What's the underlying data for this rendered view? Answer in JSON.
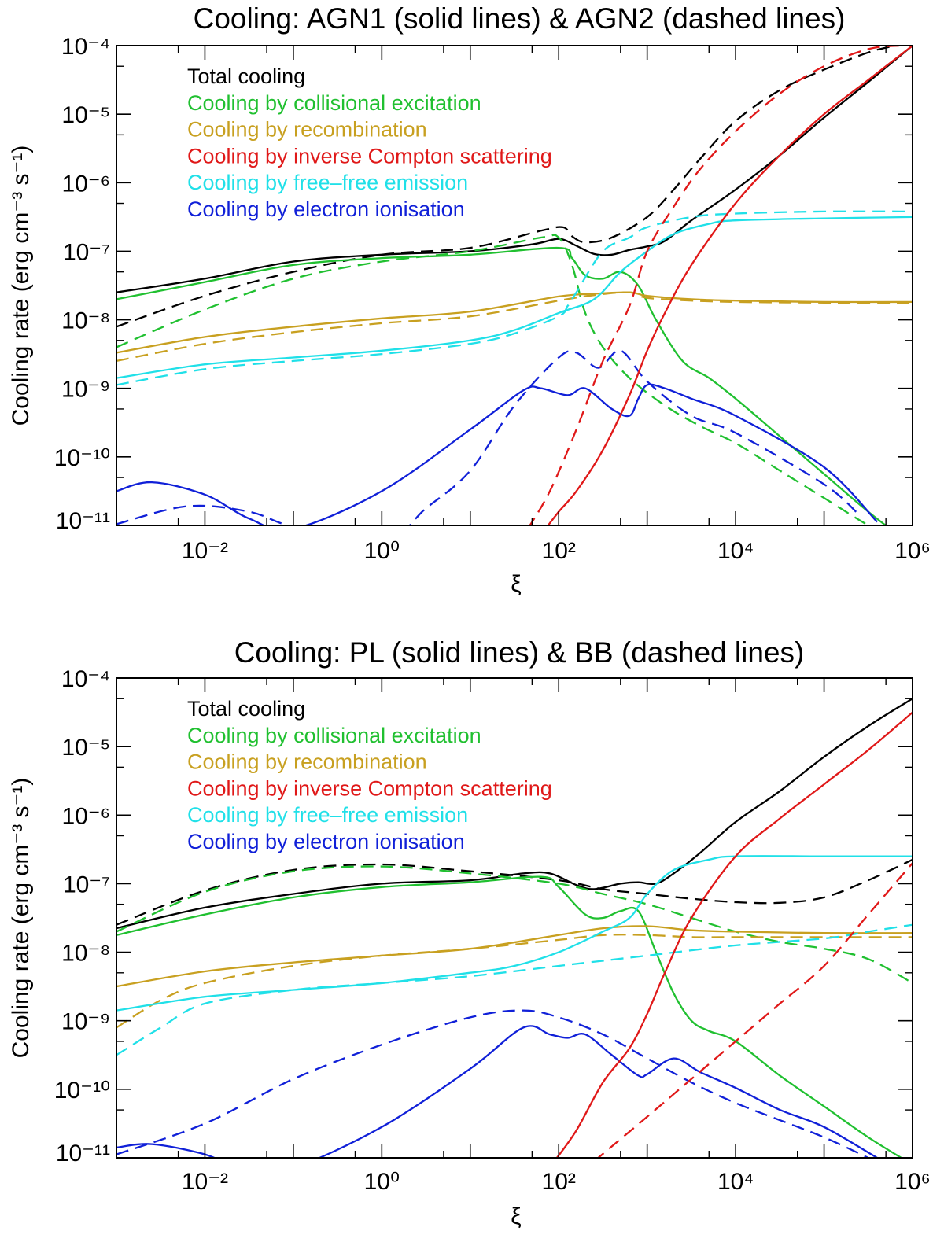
{
  "chart_data": [
    {
      "type": "line",
      "title": "Cooling: AGN1 (solid lines) & AGN2 (dashed lines)",
      "xlabel": "ξ",
      "ylabel": "Cooling rate (erg cm⁻³ s⁻¹)",
      "xscale": "log",
      "yscale": "log",
      "xlim": [
        0.001,
        1000000
      ],
      "ylim": [
        1e-11,
        0.0001
      ],
      "x_ticks": [
        "10⁻²",
        "10⁰",
        "10²",
        "10⁴",
        "10⁶"
      ],
      "y_ticks": [
        "10⁻¹¹",
        "10⁻¹⁰",
        "10⁻⁹",
        "10⁻⁸",
        "10⁻⁷",
        "10⁻⁶",
        "10⁻⁵",
        "10⁻⁴"
      ],
      "legend_position": "top-left",
      "series": [
        {
          "name": "Total cooling",
          "color": "#000000",
          "style": "solid",
          "log_x": [
            -3,
            -2,
            -1,
            0,
            1,
            1.7,
            2,
            2.2,
            2.4,
            2.6,
            2.8,
            3,
            3.2,
            3.5,
            4,
            4.5,
            5,
            5.5,
            6
          ],
          "log_y": [
            -7.6,
            -7.4,
            -7.15,
            -7.05,
            -7.0,
            -6.9,
            -6.82,
            -6.92,
            -7.04,
            -7.05,
            -6.98,
            -6.93,
            -6.85,
            -6.55,
            -6.1,
            -5.6,
            -5.05,
            -4.53,
            -4.0
          ]
        },
        {
          "name": "Total cooling",
          "color": "#000000",
          "style": "dashed",
          "log_x": [
            -3,
            -2,
            -1,
            0,
            1,
            1.8,
            2.05,
            2.15,
            2.3,
            2.6,
            3,
            3.3,
            3.6,
            4,
            4.5,
            5,
            5.5,
            5.8
          ],
          "log_y": [
            -8.1,
            -7.65,
            -7.3,
            -7.05,
            -6.95,
            -6.7,
            -6.65,
            -6.78,
            -6.87,
            -6.8,
            -6.5,
            -6.1,
            -5.65,
            -5.1,
            -4.65,
            -4.35,
            -4.1,
            -4.0
          ]
        },
        {
          "name": "Cooling by collisional excitation",
          "color": "#20c030",
          "style": "solid",
          "log_x": [
            -3,
            -2,
            -1,
            0,
            1,
            2,
            2.15,
            2.3,
            2.5,
            2.7,
            2.9,
            3.1,
            3.4,
            3.7,
            4,
            4.5,
            5,
            5.5,
            6
          ],
          "log_y": [
            -7.7,
            -7.45,
            -7.2,
            -7.1,
            -7.05,
            -6.95,
            -7.1,
            -7.35,
            -7.4,
            -7.3,
            -7.5,
            -8.0,
            -8.6,
            -8.85,
            -9.15,
            -9.7,
            -10.25,
            -10.8,
            -11.3
          ]
        },
        {
          "name": "Cooling by collisional excitation",
          "color": "#20c030",
          "style": "dashed",
          "log_x": [
            -3,
            -2,
            -1,
            0,
            1,
            1.8,
            2,
            2.15,
            2.3,
            2.5,
            2.8,
            3.2,
            3.6,
            4,
            4.5,
            5,
            5.5,
            5.8
          ],
          "log_y": [
            -8.4,
            -7.85,
            -7.4,
            -7.15,
            -7.0,
            -6.8,
            -6.8,
            -7.2,
            -7.9,
            -8.4,
            -8.85,
            -9.25,
            -9.55,
            -9.8,
            -10.2,
            -10.6,
            -11.0,
            -11.2
          ]
        },
        {
          "name": "Cooling by recombination",
          "color": "#c8a020",
          "style": "solid",
          "log_x": [
            -3,
            -2,
            -1,
            0,
            1,
            2,
            2.4,
            2.8,
            3,
            3.5,
            4,
            5,
            6
          ],
          "log_y": [
            -8.48,
            -8.25,
            -8.1,
            -7.98,
            -7.88,
            -7.66,
            -7.62,
            -7.6,
            -7.65,
            -7.7,
            -7.72,
            -7.74,
            -7.74
          ]
        },
        {
          "name": "Cooling by recombination",
          "color": "#c8a020",
          "style": "dashed",
          "log_x": [
            -3,
            -2,
            -1,
            0,
            1,
            2,
            2.4,
            2.8,
            3,
            3.5,
            4,
            5,
            6
          ],
          "log_y": [
            -8.6,
            -8.35,
            -8.18,
            -8.05,
            -7.95,
            -7.72,
            -7.64,
            -7.6,
            -7.68,
            -7.72,
            -7.74,
            -7.75,
            -7.75
          ]
        },
        {
          "name": "Cooling by free–free emission",
          "color": "#20e0e8",
          "style": "solid",
          "log_x": [
            -3,
            -2,
            -1,
            0,
            1,
            1.5,
            2,
            2.4,
            2.7,
            3,
            3.3,
            3.7,
            4,
            5,
            6
          ],
          "log_y": [
            -8.85,
            -8.65,
            -8.55,
            -8.45,
            -8.3,
            -8.15,
            -7.9,
            -7.7,
            -7.3,
            -7.0,
            -6.75,
            -6.6,
            -6.55,
            -6.52,
            -6.5
          ]
        },
        {
          "name": "Cooling by free–free emission",
          "color": "#20e0e8",
          "style": "dashed",
          "log_x": [
            -3,
            -2,
            -1,
            0,
            1,
            1.5,
            2,
            2.1,
            2.2,
            2.5,
            2.8,
            3,
            3.5,
            4,
            5,
            6
          ],
          "log_y": [
            -8.95,
            -8.72,
            -8.6,
            -8.5,
            -8.35,
            -8.2,
            -7.95,
            -7.8,
            -7.6,
            -7.0,
            -6.8,
            -6.65,
            -6.5,
            -6.45,
            -6.42,
            -6.42
          ]
        },
        {
          "name": "Cooling by electron ionisation",
          "color": "#1020d8",
          "style": "solid",
          "log_x": [
            -3,
            -2.6,
            -2,
            -1.5,
            -1,
            0,
            1,
            1.6,
            1.8,
            2.1,
            2.3,
            2.6,
            2.8,
            2.9,
            3,
            3.2,
            3.5,
            4,
            5,
            5.6
          ],
          "log_y": [
            -10.5,
            -10.37,
            -10.55,
            -10.9,
            -11.05,
            -10.5,
            -9.6,
            -9.03,
            -9.0,
            -9.1,
            -9.0,
            -9.3,
            -9.4,
            -9.15,
            -8.95,
            -9.0,
            -9.15,
            -9.4,
            -10.15,
            -10.95
          ]
        },
        {
          "name": "Cooling by electron ionisation",
          "color": "#1020d8",
          "style": "dashed",
          "log_x": [
            -3,
            -2.2,
            -1.5,
            -1,
            0,
            0.5,
            1,
            1.5,
            2,
            2.2,
            2.45,
            2.7,
            3,
            3.5,
            4,
            5,
            5.4
          ],
          "log_y": [
            -10.98,
            -10.72,
            -10.8,
            -11.02,
            -11.25,
            -10.75,
            -10.2,
            -9.25,
            -8.55,
            -8.48,
            -8.7,
            -8.45,
            -8.9,
            -9.4,
            -9.65,
            -10.4,
            -10.85
          ]
        },
        {
          "name": "Cooling by inverse Compton scattering",
          "color": "#e01818",
          "style": "solid",
          "log_x": [
            1.85,
            2,
            2.2,
            2.5,
            2.8,
            3,
            3.2,
            3.5,
            4,
            4.5,
            5,
            5.5,
            6
          ],
          "log_y": [
            -11.05,
            -10.8,
            -10.5,
            -9.9,
            -9.1,
            -8.45,
            -7.9,
            -7.2,
            -6.3,
            -5.6,
            -5.0,
            -4.5,
            -4.0
          ]
        },
        {
          "name": "Cooling by inverse Compton scattering",
          "color": "#e01818",
          "style": "dashed",
          "log_x": [
            1.65,
            1.9,
            2.2,
            2.5,
            2.8,
            3,
            3.3,
            3.6,
            4,
            4.5,
            5,
            5.5,
            5.85
          ],
          "log_y": [
            -11.05,
            -10.5,
            -9.6,
            -8.6,
            -7.8,
            -7.0,
            -6.35,
            -5.8,
            -5.25,
            -4.7,
            -4.3,
            -4.05,
            -4.0
          ]
        }
      ]
    },
    {
      "type": "line",
      "title": "Cooling: PL (solid lines) & BB (dashed lines)",
      "xlabel": "ξ",
      "ylabel": "Cooling rate (erg cm⁻³ s⁻¹)",
      "xscale": "log",
      "yscale": "log",
      "xlim": [
        0.001,
        1000000
      ],
      "ylim": [
        1e-11,
        0.0001
      ],
      "x_ticks": [
        "10⁻²",
        "10⁰",
        "10²",
        "10⁴",
        "10⁶"
      ],
      "y_ticks": [
        "10⁻¹¹",
        "10⁻¹⁰",
        "10⁻⁹",
        "10⁻⁸",
        "10⁻⁷",
        "10⁻⁶",
        "10⁻⁵",
        "10⁻⁴"
      ],
      "legend_position": "top-left",
      "series": [
        {
          "name": "Total cooling",
          "color": "#000000",
          "style": "solid",
          "log_x": [
            -3,
            -2,
            -1,
            0,
            1,
            1.6,
            1.9,
            2.2,
            2.4,
            2.7,
            2.9,
            3.1,
            3.3,
            3.6,
            4,
            4.5,
            5,
            5.5,
            6
          ],
          "log_y": [
            -7.65,
            -7.35,
            -7.15,
            -7.0,
            -6.95,
            -6.85,
            -6.85,
            -7.02,
            -7.08,
            -7.0,
            -6.98,
            -7.0,
            -6.85,
            -6.55,
            -6.1,
            -5.65,
            -5.15,
            -4.7,
            -4.3
          ]
        },
        {
          "name": "Total cooling",
          "color": "#000000",
          "style": "dashed",
          "log_x": [
            -3,
            -2,
            -1,
            0,
            1,
            2,
            2.5,
            3,
            3.5,
            4,
            4.5,
            5,
            5.5,
            6
          ],
          "log_y": [
            -7.6,
            -7.1,
            -6.8,
            -6.72,
            -6.82,
            -6.95,
            -7.08,
            -7.15,
            -7.22,
            -7.27,
            -7.28,
            -7.2,
            -6.95,
            -6.65
          ]
        },
        {
          "name": "Cooling by collisional excitation",
          "color": "#20c030",
          "style": "solid",
          "log_x": [
            -3,
            -2,
            -1,
            0,
            1,
            1.8,
            2,
            2.3,
            2.5,
            2.7,
            2.9,
            3.1,
            3.3,
            3.5,
            3.7,
            4,
            4.5,
            5,
            5.5,
            6
          ],
          "log_y": [
            -7.75,
            -7.45,
            -7.2,
            -7.05,
            -6.98,
            -6.9,
            -7.05,
            -7.45,
            -7.5,
            -7.4,
            -7.4,
            -8.0,
            -8.6,
            -9.0,
            -9.15,
            -9.3,
            -9.8,
            -10.25,
            -10.7,
            -11.1
          ]
        },
        {
          "name": "Cooling by collisional excitation",
          "color": "#20c030",
          "style": "dashed",
          "log_x": [
            -3,
            -2,
            -1,
            0,
            1,
            2,
            2.5,
            3,
            3.5,
            4,
            4.5,
            5,
            5.5,
            6
          ],
          "log_y": [
            -7.7,
            -7.12,
            -6.82,
            -6.75,
            -6.85,
            -7.0,
            -7.15,
            -7.3,
            -7.5,
            -7.7,
            -7.85,
            -7.95,
            -8.1,
            -8.45
          ]
        },
        {
          "name": "Cooling by recombination",
          "color": "#c8a020",
          "style": "solid",
          "log_x": [
            -3,
            -2,
            -1,
            0,
            1,
            2,
            2.5,
            3,
            3.5,
            4,
            5,
            6
          ],
          "log_y": [
            -8.5,
            -8.28,
            -8.15,
            -8.05,
            -7.95,
            -7.75,
            -7.65,
            -7.62,
            -7.68,
            -7.7,
            -7.72,
            -7.72
          ]
        },
        {
          "name": "Cooling by recombination",
          "color": "#c8a020",
          "style": "dashed",
          "log_x": [
            -3,
            -2.5,
            -2,
            -1,
            0,
            1,
            2,
            2.5,
            3,
            3.5,
            4,
            5,
            6
          ],
          "log_y": [
            -9.1,
            -8.7,
            -8.45,
            -8.2,
            -8.05,
            -7.95,
            -7.82,
            -7.75,
            -7.75,
            -7.78,
            -7.78,
            -7.78,
            -7.78
          ]
        },
        {
          "name": "Cooling by free–free emission",
          "color": "#20e0e8",
          "style": "solid",
          "log_x": [
            -3,
            -2,
            -1,
            0,
            1,
            1.5,
            2,
            2.5,
            2.8,
            3,
            3.3,
            3.7,
            4,
            5,
            6
          ],
          "log_y": [
            -8.85,
            -8.65,
            -8.55,
            -8.45,
            -8.3,
            -8.2,
            -8.0,
            -7.7,
            -7.5,
            -7.15,
            -6.8,
            -6.65,
            -6.6,
            -6.6,
            -6.6
          ]
        },
        {
          "name": "Cooling by free–free emission",
          "color": "#20e0e8",
          "style": "dashed",
          "log_x": [
            -3,
            -2.5,
            -2,
            -1,
            0,
            1,
            2,
            3,
            4,
            5,
            5.5,
            6
          ],
          "log_y": [
            -9.5,
            -9.1,
            -8.75,
            -8.55,
            -8.45,
            -8.35,
            -8.2,
            -8.05,
            -7.9,
            -7.8,
            -7.7,
            -7.6
          ]
        },
        {
          "name": "Cooling by electron ionisation",
          "color": "#1020d8",
          "style": "solid",
          "log_x": [
            -3,
            -2.6,
            -2,
            -1.5,
            -1,
            0,
            1,
            1.6,
            1.9,
            2.1,
            2.3,
            2.6,
            2.9,
            3,
            3.3,
            3.6,
            4,
            4.5,
            5,
            5.6
          ],
          "log_y": [
            -10.85,
            -10.8,
            -10.95,
            -11.2,
            -11.15,
            -10.55,
            -9.7,
            -9.1,
            -9.2,
            -9.25,
            -9.2,
            -9.5,
            -9.8,
            -9.78,
            -9.55,
            -9.75,
            -9.98,
            -10.3,
            -10.55,
            -11.0
          ]
        },
        {
          "name": "Cooling by electron ionisation",
          "color": "#1020d8",
          "style": "dashed",
          "log_x": [
            -3,
            -2,
            -1,
            0,
            1,
            1.6,
            2,
            2.5,
            3,
            3.5,
            4,
            4.5,
            5,
            5.5
          ],
          "log_y": [
            -10.95,
            -10.5,
            -9.85,
            -9.35,
            -8.95,
            -8.85,
            -8.95,
            -9.2,
            -9.55,
            -9.9,
            -10.2,
            -10.45,
            -10.7,
            -11.0
          ]
        },
        {
          "name": "Cooling by inverse Compton scattering",
          "color": "#e01818",
          "style": "solid",
          "log_x": [
            1.95,
            2.2,
            2.5,
            2.8,
            3,
            3.2,
            3.5,
            4,
            4.5,
            5,
            5.5,
            6
          ],
          "log_y": [
            -11.05,
            -10.6,
            -9.9,
            -9.4,
            -8.9,
            -8.3,
            -7.5,
            -6.6,
            -6.05,
            -5.55,
            -5.05,
            -4.5
          ]
        },
        {
          "name": "Cooling by inverse Compton scattering",
          "color": "#e01818",
          "style": "dashed",
          "log_x": [
            2.4,
            3,
            3.5,
            4,
            4.5,
            5,
            5.5,
            6
          ],
          "log_y": [
            -11.05,
            -10.4,
            -9.85,
            -9.3,
            -8.75,
            -8.2,
            -7.45,
            -6.7
          ]
        }
      ]
    }
  ],
  "legend": {
    "items": [
      {
        "label": "Total cooling",
        "color": "#000000"
      },
      {
        "label": "Cooling by collisional excitation",
        "color": "#20c030"
      },
      {
        "label": "Cooling by recombination",
        "color": "#c8a020"
      },
      {
        "label": "Cooling by inverse Compton scattering",
        "color": "#e01818"
      },
      {
        "label": "Cooling by free–free emission",
        "color": "#20e0e8"
      },
      {
        "label": "Cooling by electron ionisation",
        "color": "#1020d8"
      }
    ]
  }
}
